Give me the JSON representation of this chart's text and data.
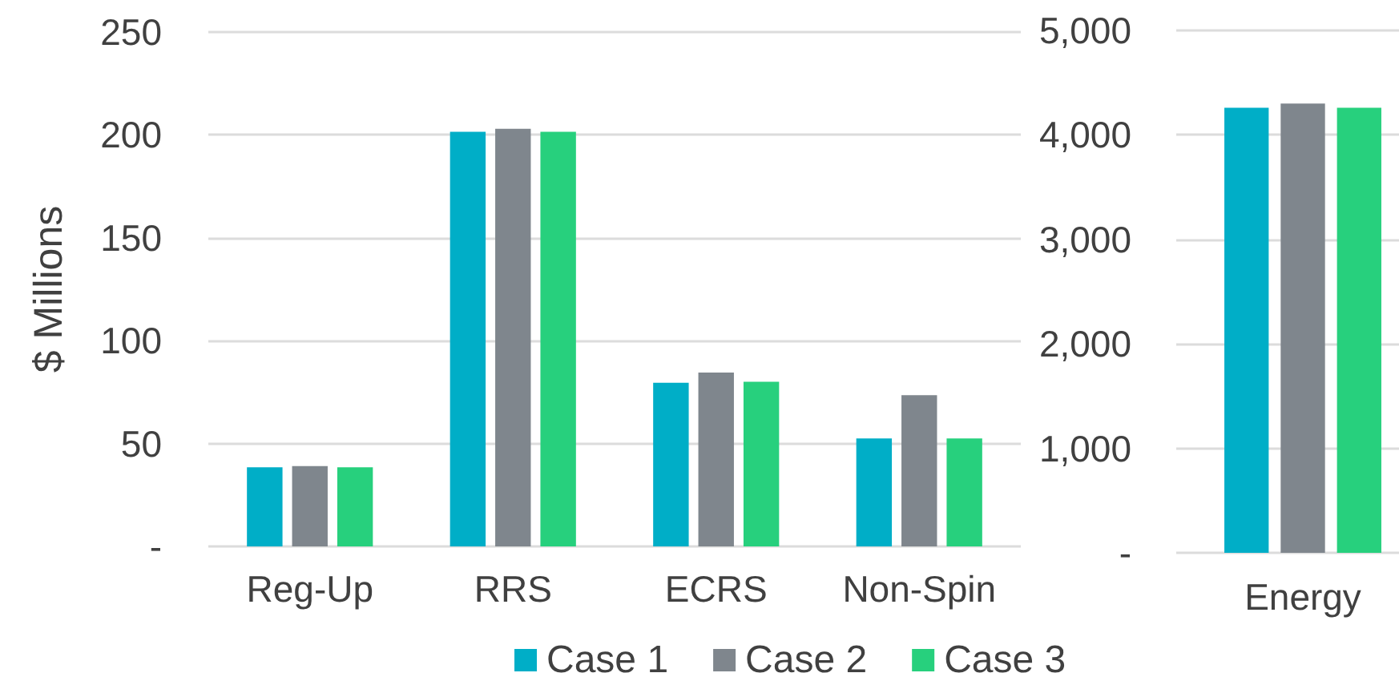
{
  "chart_data": [
    {
      "type": "bar",
      "ylabel": "$ Millions",
      "categories": [
        "Reg-Up",
        "RRS",
        "ECRS",
        "Non-Spin"
      ],
      "series": [
        {
          "name": "Case 1",
          "color": "#00aec7",
          "values": [
            38.5,
            201.5,
            79.5,
            52.5
          ]
        },
        {
          "name": "Case 2",
          "color": "#7f868d",
          "values": [
            39,
            203,
            84.5,
            73.5
          ]
        },
        {
          "name": "Case 3",
          "color": "#27d07d",
          "values": [
            38.5,
            201.5,
            80,
            52.5
          ]
        }
      ],
      "ylim": [
        0,
        250
      ],
      "yticks": [
        {
          "value": 0,
          "label": "-"
        },
        50,
        100,
        150,
        200,
        250
      ],
      "grid": "y",
      "legend": "bottom"
    },
    {
      "type": "bar",
      "categories": [
        "Energy"
      ],
      "series": [
        {
          "color": "#00aec7",
          "values": [
            4260
          ]
        },
        {
          "color": "#7f868d",
          "values": [
            4300
          ]
        },
        {
          "color": "#27d07d",
          "values": [
            4260
          ]
        }
      ],
      "ylim": [
        0,
        5000
      ],
      "yticks": [
        {
          "value": 0,
          "label": "-"
        },
        {
          "value": 1000,
          "label": "1,000"
        },
        {
          "value": 2000,
          "label": "2,000"
        },
        {
          "value": 3000,
          "label": "3,000"
        },
        {
          "value": 4000,
          "label": "4,000"
        },
        {
          "value": 5000,
          "label": "5,000"
        }
      ],
      "grid": "y"
    }
  ]
}
